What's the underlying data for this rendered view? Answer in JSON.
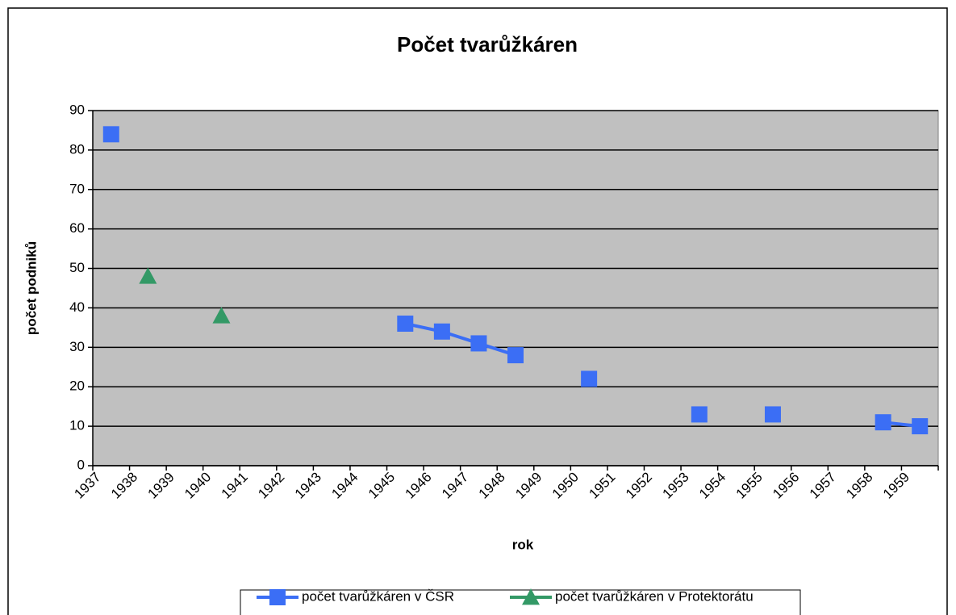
{
  "chart_data": {
    "type": "line",
    "title": "Počet tvarůžkáren",
    "x_label": "rok",
    "y_label": "počet podniků",
    "categories": [
      "1937",
      "1938",
      "1939",
      "1940",
      "1941",
      "1942",
      "1943",
      "1944",
      "1945",
      "1946",
      "1947",
      "1948",
      "1949",
      "1950",
      "1951",
      "1952",
      "1953",
      "1954",
      "1955",
      "1956",
      "1957",
      "1958",
      "1959"
    ],
    "series": [
      {
        "name": "počet tvarůžkáren v ČSR",
        "color": "#3b6ef5",
        "marker": "square",
        "values": [
          84,
          null,
          null,
          null,
          null,
          null,
          null,
          null,
          36,
          34,
          31,
          28,
          null,
          22,
          null,
          null,
          13,
          null,
          13,
          null,
          null,
          11,
          10
        ]
      },
      {
        "name": "počet tvarůžkáren v Protektorátu",
        "color": "#339966",
        "marker": "triangle",
        "values": [
          null,
          48,
          null,
          38,
          null,
          null,
          null,
          null,
          null,
          null,
          null,
          null,
          null,
          null,
          null,
          null,
          null,
          null,
          null,
          null,
          null,
          null,
          null
        ]
      }
    ],
    "ylim": [
      0,
      90
    ],
    "yticks": [
      0,
      10,
      20,
      30,
      40,
      50,
      60,
      70,
      80,
      90
    ],
    "grid": true,
    "plot_background": "#c0c0c0",
    "legend": "bottom"
  }
}
